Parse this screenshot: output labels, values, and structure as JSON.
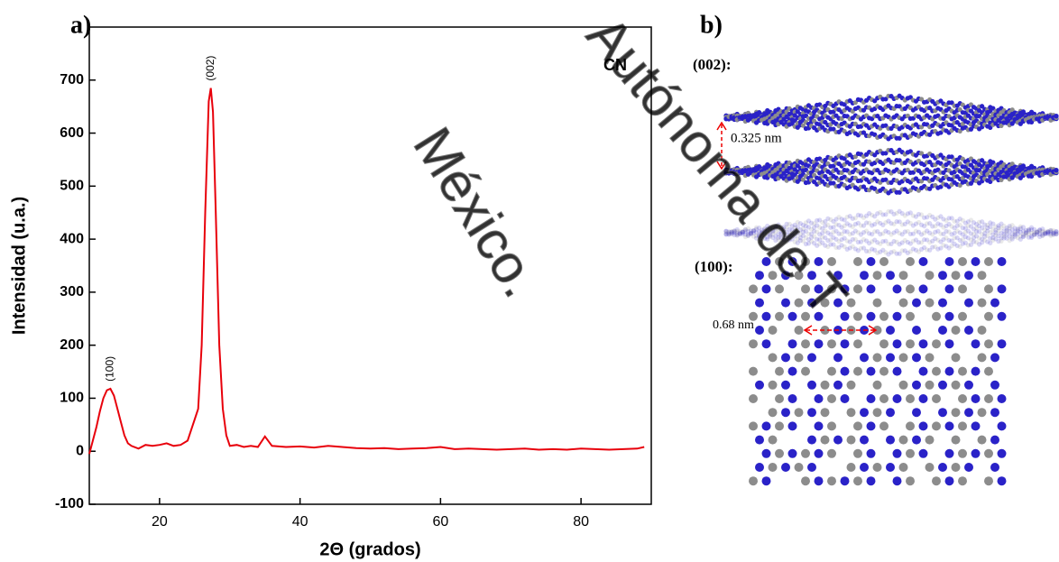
{
  "chart_data": {
    "type": "line",
    "xlabel": "2Θ (grados)",
    "ylabel": "Intensidad (u.a.)",
    "xlim": [
      10,
      90
    ],
    "xticks": [
      20,
      40,
      60,
      80
    ],
    "ylim": [
      -100,
      800
    ],
    "yticks": [
      -100,
      0,
      100,
      200,
      300,
      400,
      500,
      600,
      700
    ],
    "x": [
      10,
      10.5,
      11,
      11.5,
      12,
      12.5,
      13,
      13.5,
      14,
      14.5,
      15,
      15.5,
      16,
      17,
      18,
      19,
      20,
      21,
      22,
      23,
      24,
      24.5,
      25,
      25.5,
      26,
      26.5,
      27,
      27.3,
      27.6,
      28,
      28.5,
      29,
      29.5,
      30,
      31,
      32,
      33,
      34,
      35,
      36,
      38,
      40,
      42,
      44,
      46,
      48,
      50,
      52,
      54,
      56,
      58,
      60,
      62,
      64,
      66,
      68,
      70,
      72,
      74,
      76,
      78,
      80,
      82,
      84,
      86,
      88,
      89
    ],
    "series": [
      {
        "name": "CN",
        "color": "#e8000b",
        "values": [
          -5,
          20,
          45,
          75,
          100,
          115,
          118,
          105,
          80,
          55,
          30,
          15,
          10,
          5,
          12,
          10,
          12,
          15,
          10,
          12,
          20,
          40,
          60,
          80,
          200,
          450,
          660,
          685,
          640,
          450,
          200,
          80,
          30,
          10,
          12,
          8,
          10,
          8,
          28,
          10,
          8,
          9,
          7,
          10,
          8,
          6,
          5,
          6,
          4,
          5,
          6,
          8,
          4,
          5,
          4,
          3,
          4,
          5,
          3,
          4,
          3,
          5,
          4,
          3,
          4,
          5,
          8
        ]
      }
    ],
    "annotations": [
      {
        "text": "(100)",
        "x": 13,
        "y": 118
      },
      {
        "text": "(002)",
        "x": 27.3,
        "y": 685
      }
    ]
  },
  "panels": {
    "a": "a)",
    "b": "b)"
  },
  "structure": {
    "layer_002": "(002):",
    "spacing_002": "0.325 nm",
    "layer_100": "(100):",
    "spacing_100": "0.68 nm"
  },
  "watermark": [
    "México.",
    "Autónoma de T"
  ]
}
